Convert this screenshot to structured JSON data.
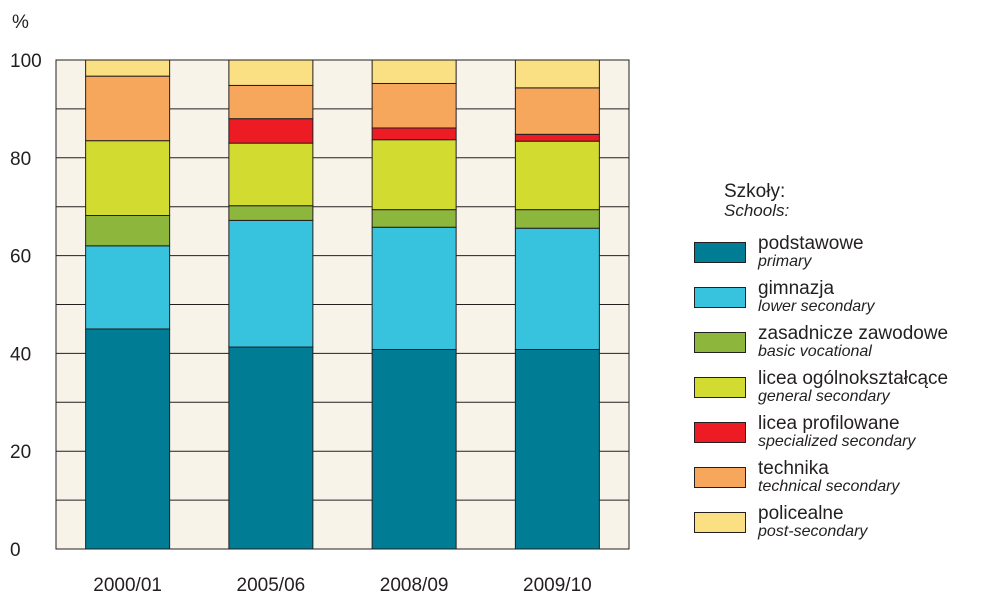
{
  "chart_data": {
    "type": "bar",
    "stacked": true,
    "ylabel": "%",
    "ylim": [
      0,
      100
    ],
    "yticks": [
      0,
      20,
      40,
      60,
      80,
      100
    ],
    "grid": true,
    "categories": [
      "2000/01",
      "2005/06",
      "2008/09",
      "2009/10"
    ],
    "legend_title": "Szkoły:",
    "legend_title_en": "Schools:",
    "series": [
      {
        "name": "podstawowe",
        "name_en": "primary",
        "color": "#007c94",
        "values": [
          45,
          41.3,
          40.8,
          40.8
        ]
      },
      {
        "name": "gimnazja",
        "name_en": "lower secondary",
        "color": "#37c3de",
        "values": [
          17,
          25.9,
          25,
          24.8
        ]
      },
      {
        "name": "zasadnicze zawodowe",
        "name_en": "basic vocational",
        "color": "#8db63c",
        "values": [
          6.2,
          3,
          3.6,
          3.8
        ]
      },
      {
        "name": "licea ogólnokształcące",
        "name_en": "general secondary",
        "color": "#d2db2f",
        "values": [
          15.3,
          12.8,
          14.3,
          14
        ]
      },
      {
        "name": "licea profilowane",
        "name_en": "specialized secondary",
        "color": "#ed1c24",
        "values": [
          0,
          5,
          2.4,
          1.4
        ]
      },
      {
        "name": "technika",
        "name_en": "technical secondary",
        "color": "#f7a75b",
        "values": [
          13.2,
          6.8,
          9.1,
          9.5
        ]
      },
      {
        "name": "policealne",
        "name_en": "post-secondary",
        "color": "#fbdf83",
        "values": [
          3.3,
          5.2,
          4.8,
          5.7
        ]
      }
    ]
  },
  "colors": {
    "plot_background": "#f7f3e8",
    "axis": "#231f20"
  }
}
